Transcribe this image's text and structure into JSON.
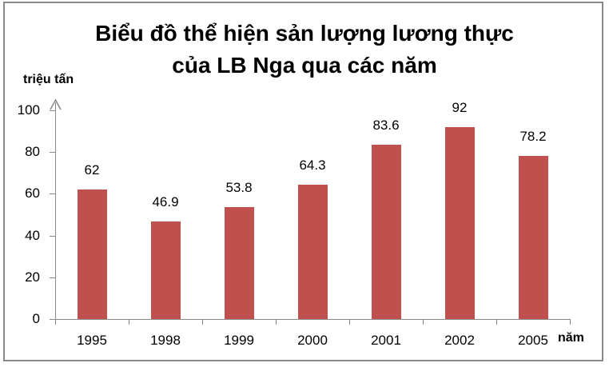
{
  "chart_data": {
    "type": "bar",
    "title": "Biểu đồ thể hiện sản lượng lương thực của LB Nga qua các năm",
    "title_lines": [
      "Biểu đồ thể hiện sản lượng lương thực",
      "của LB Nga qua các năm"
    ],
    "categories": [
      "1995",
      "1998",
      "1999",
      "2000",
      "2001",
      "2002",
      "2005"
    ],
    "values": [
      62,
      46.9,
      53.8,
      64.3,
      83.6,
      92,
      78.2
    ],
    "data_labels": [
      "62",
      "46.9",
      "53.8",
      "64.3",
      "83.6",
      "92",
      "78.2"
    ],
    "xlabel": "năm",
    "ylabel": "triệu tấn",
    "ylim": [
      0,
      100
    ],
    "yticks": [
      0,
      20,
      40,
      60,
      80,
      100
    ],
    "grid": false,
    "legend": null,
    "bar_color": "#C0504D",
    "axis_color": "#888888"
  }
}
